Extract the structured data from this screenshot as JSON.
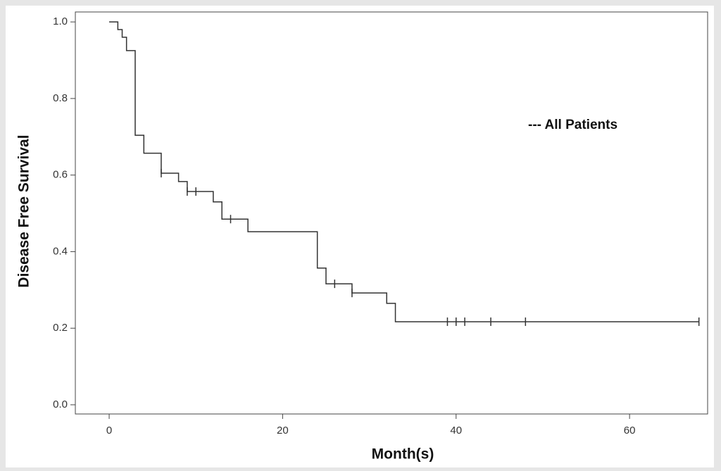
{
  "chart_data": {
    "type": "step",
    "x_label": "Month(s)",
    "y_label": "Disease Free Survival",
    "series": [
      {
        "name": "--- All Patients",
        "color": "#333333",
        "x": [
          0,
          1,
          1.5,
          2,
          3,
          4,
          6,
          8,
          9,
          12,
          13,
          16,
          24,
          25,
          28,
          32,
          33,
          68
        ],
        "values": [
          1.0,
          0.98,
          0.96,
          0.925,
          0.704,
          0.657,
          0.605,
          0.583,
          0.557,
          0.53,
          0.485,
          0.452,
          0.357,
          0.316,
          0.292,
          0.265,
          0.217,
          0.217
        ],
        "censored_x": [
          6,
          9,
          10,
          14,
          26,
          28,
          39,
          40,
          41,
          44,
          48,
          68
        ],
        "censored_values": [
          0.605,
          0.557,
          0.557,
          0.485,
          0.316,
          0.292,
          0.217,
          0.217,
          0.217,
          0.217,
          0.217,
          0.217
        ]
      }
    ],
    "xlim": [
      -3.9,
      69
    ],
    "ylim": [
      -0.024,
      1.026
    ],
    "xticks": [
      0,
      20,
      40,
      60
    ],
    "yticks": [
      {
        "value": 0,
        "label": "0.0"
      },
      0.2,
      0.4,
      0.6,
      0.8,
      {
        "value": 1,
        "label": "1.0"
      }
    ]
  }
}
